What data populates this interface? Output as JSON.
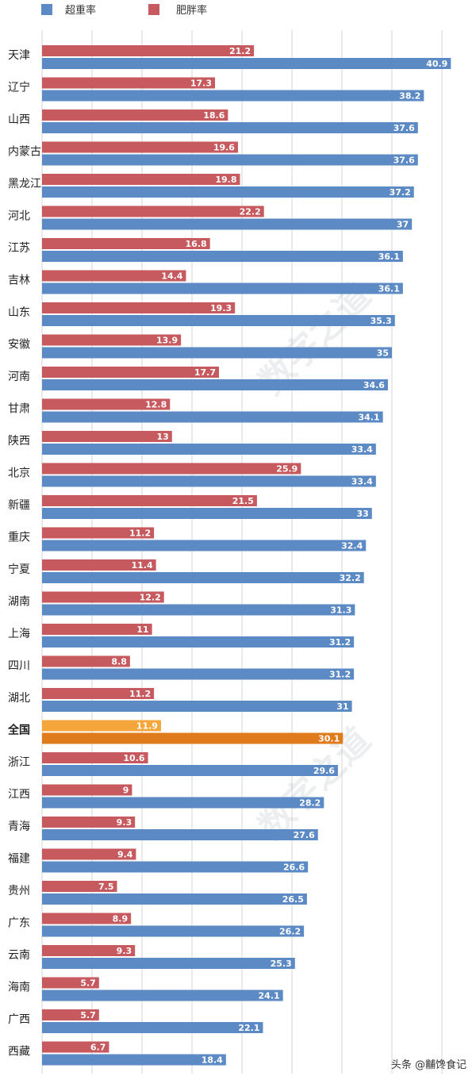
{
  "legend": [
    {
      "label": "超重率",
      "color": "#5b8ac5"
    },
    {
      "label": "肥胖率",
      "color": "#c65a5e"
    }
  ],
  "highlight": {
    "category": "全国",
    "colors": [
      "#f5a63b",
      "#e07b1c"
    ]
  },
  "watermark_text": "数字之道",
  "credit_text": "头条 @黼馋食记",
  "chart_data": {
    "type": "bar",
    "orientation": "horizontal",
    "categories": [
      "天津",
      "辽宁",
      "山西",
      "内蒙古",
      "黑龙江",
      "河北",
      "江苏",
      "吉林",
      "山东",
      "安徽",
      "河南",
      "甘肃",
      "陕西",
      "北京",
      "新疆",
      "重庆",
      "宁夏",
      "湖南",
      "上海",
      "四川",
      "湖北",
      "全国",
      "浙江",
      "江西",
      "青海",
      "福建",
      "贵州",
      "广东",
      "云南",
      "海南",
      "广西",
      "西藏"
    ],
    "series": [
      {
        "name": "肥胖率",
        "values": [
          21.2,
          17.3,
          18.6,
          19.6,
          19.8,
          22.2,
          16.8,
          14.4,
          19.3,
          13.9,
          17.7,
          12.8,
          13,
          25.9,
          21.5,
          11.2,
          11.4,
          12.2,
          11,
          8.8,
          11.2,
          11.9,
          10.6,
          9,
          9.3,
          9.4,
          7.5,
          8.9,
          9.3,
          5.7,
          5.7,
          6.7
        ]
      },
      {
        "name": "超重率",
        "values": [
          40.9,
          38.2,
          37.6,
          37.6,
          37.2,
          37,
          36.1,
          36.1,
          35.3,
          35,
          34.6,
          34.1,
          33.4,
          33.4,
          33,
          32.4,
          32.2,
          31.3,
          31.2,
          31.2,
          31,
          30.1,
          29.6,
          28.2,
          27.6,
          26.6,
          26.5,
          26.2,
          25.3,
          24.1,
          22.1,
          18.4
        ]
      }
    ],
    "xlim": [
      0,
      45
    ],
    "grid": true,
    "legend_position": "top-left",
    "title": "",
    "xlabel": "",
    "ylabel": ""
  }
}
